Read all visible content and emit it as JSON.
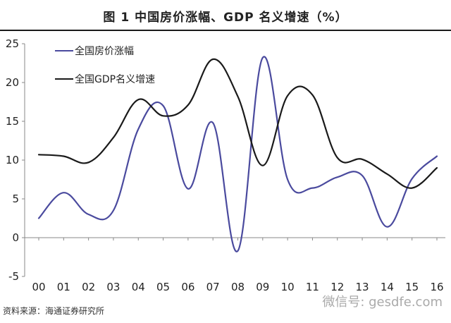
{
  "page": {
    "title": "图 1    中国房价涨幅、GDP 名义增速（%）",
    "source": "资料来源：海通证券研究所",
    "watermark": "微信号: gesdfe.com"
  },
  "chart_data": {
    "type": "line",
    "title": "",
    "xlabel": "",
    "ylabel": "",
    "categories": [
      "00",
      "01",
      "02",
      "03",
      "04",
      "05",
      "06",
      "07",
      "08",
      "09",
      "10",
      "11",
      "12",
      "13",
      "14",
      "15",
      "16"
    ],
    "ylim": [
      -5,
      25
    ],
    "yticks": [
      -5,
      0,
      5,
      10,
      15,
      20,
      25
    ],
    "grid": false,
    "legend_position": "top-left",
    "series": [
      {
        "name": "全国房价涨幅",
        "color": "#4a4a9e",
        "values": [
          2.5,
          5.8,
          3.0,
          3.5,
          14.0,
          17.0,
          6.3,
          14.8,
          -1.7,
          23.2,
          7.5,
          6.4,
          7.8,
          8.0,
          1.4,
          7.6,
          10.5
        ]
      },
      {
        "name": "全国GDP名义增速",
        "color": "#1a1a1a",
        "values": [
          10.7,
          10.5,
          9.7,
          12.9,
          17.8,
          15.7,
          17.1,
          23.0,
          18.2,
          9.3,
          18.3,
          18.4,
          10.3,
          10.1,
          8.2,
          6.4,
          9.0
        ]
      }
    ]
  }
}
